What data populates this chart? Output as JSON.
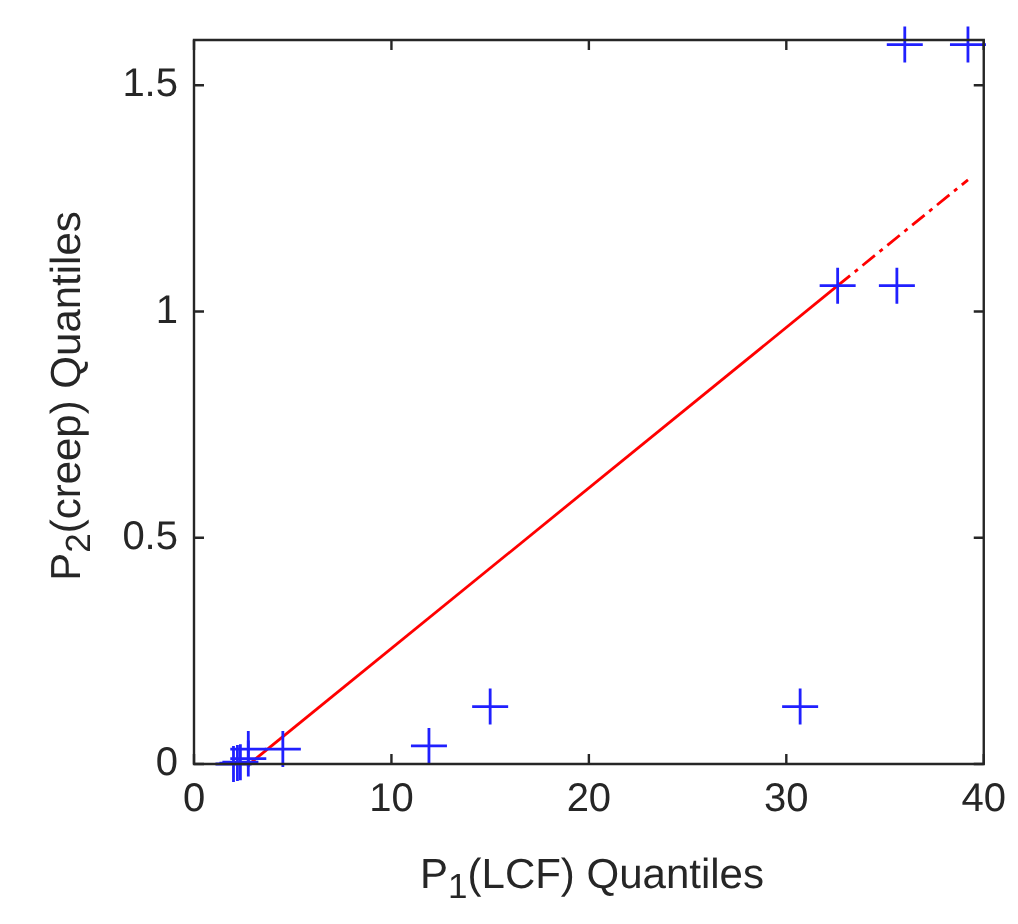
{
  "chart_data": {
    "type": "scatter",
    "xlabel": "P$_{1}$(LCF) Quantiles",
    "ylabel": "P$_{2}$(creep) Quantiles",
    "xlim": [
      0,
      40
    ],
    "xticks": [
      0,
      10,
      20,
      30,
      40
    ],
    "ylim": [
      0,
      1.6
    ],
    "yticks": [
      0,
      0.5,
      1,
      1.5
    ],
    "grid": false,
    "legend": false,
    "series": [
      {
        "marker": "cross",
        "color": "#2020ff",
        "x": [
          2.0,
          2.2,
          2.35,
          2.75,
          2.75,
          4.5,
          11.9,
          15.0,
          30.7,
          32.6,
          35.6,
          36.0,
          39.2
        ],
        "values": [
          0,
          0.002,
          0.004,
          0.012,
          0.033,
          0.033,
          0.04,
          0.127,
          0.127,
          1.057,
          1.057,
          1.59,
          1.59
        ]
      },
      {
        "type": "line",
        "line_style": "solid",
        "marker": "none",
        "color": "#ff0000",
        "x": [
          2.8,
          32.6
        ],
        "values": [
          0,
          1.057
        ]
      },
      {
        "type": "line",
        "line_style": "dashed",
        "marker": "none",
        "color": "#ff0000",
        "x": [
          32.6,
          39.2
        ],
        "values": [
          1.057,
          1.291
        ]
      }
    ]
  }
}
